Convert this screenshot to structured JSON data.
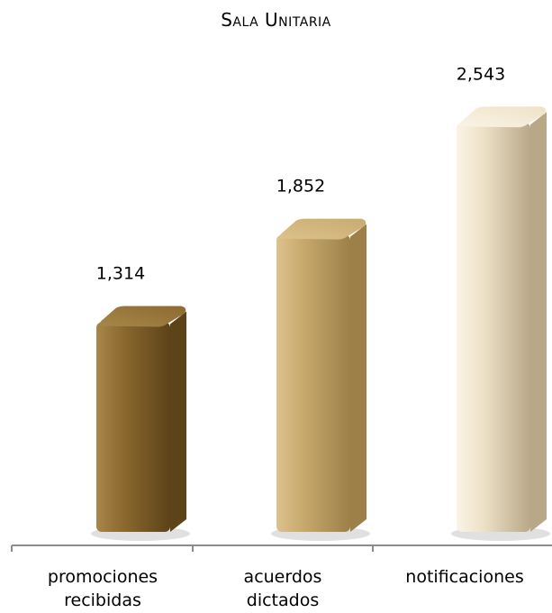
{
  "chart_data": {
    "type": "bar",
    "title": "Sala Unitaria",
    "categories": [
      [
        "promociones",
        "recibidas"
      ],
      [
        "acuerdos",
        "dictados"
      ],
      [
        "notificaciones"
      ]
    ],
    "values": [
      1314,
      1852,
      2543
    ],
    "value_labels": [
      "1,314",
      "1,852",
      "2,543"
    ],
    "ylim": [
      0,
      2750
    ],
    "grid": false,
    "legend": "none",
    "colors": {
      "bars": [
        "#8c6a30",
        "#c8aa6e",
        "#eee2c8"
      ],
      "bar_shadows": [
        "#5c4318",
        "#9c8048",
        "#b8a888"
      ],
      "bar_highlights": [
        "#a8874a",
        "#dcc28c",
        "#faf4e6"
      ],
      "axis": "#8c8c8c"
    }
  }
}
